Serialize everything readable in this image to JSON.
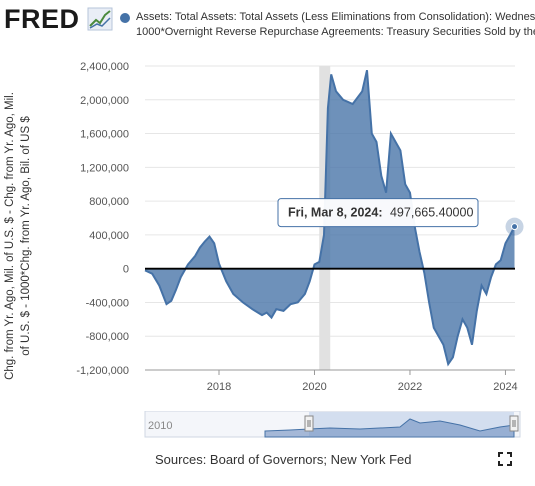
{
  "brand": {
    "logo_text": "FRED",
    "logo_icon": "trend-line-icon"
  },
  "legend": {
    "color": "#4572A7",
    "line1": "Assets: Total Assets: Total Assets (Less Eliminations from Consolidation): Wednesday",
    "line2": "1000*Overnight Reverse Repurchase Agreements: Treasury Securities Sold by the Fed"
  },
  "y_axis_label": {
    "line1": "Chg. from Yr. Ago, Mil. of U.S. $ - Chg. from Yr. Ago, Mil.",
    "line2": "of U.S. $ - 1000*Chg. from Yr. Ago, Bil. of US $"
  },
  "tooltip": {
    "date": "Fri, Mar 8, 2024:",
    "value": "497,665.40000"
  },
  "navigator": {
    "start_label": "2010"
  },
  "footer": {
    "source": "Sources: Board of Governors; New York Fed"
  },
  "chart_data": {
    "type": "area",
    "series_color": "#4572A7",
    "recession_shading": [
      2020.1,
      2020.33
    ],
    "x_ticks": [
      2018,
      2020,
      2022,
      2024
    ],
    "x_tick_labels": [
      "2018",
      "2020",
      "2022",
      "2024"
    ],
    "y_ticks": [
      -1200000,
      -800000,
      -400000,
      0,
      400000,
      800000,
      1200000,
      1600000,
      2000000,
      2400000
    ],
    "y_tick_labels": [
      "-1,200,000",
      "-800,000",
      "-400,000",
      "0",
      "400,000",
      "800,000",
      "1,200,000",
      "1,600,000",
      "2,000,000",
      "2,400,000"
    ],
    "xlim": [
      2016.45,
      2024.2
    ],
    "ylim": [
      -1200000,
      2400000
    ],
    "x": [
      2016.45,
      2016.6,
      2016.75,
      2016.9,
      2017.0,
      2017.1,
      2017.2,
      2017.35,
      2017.5,
      2017.6,
      2017.7,
      2017.8,
      2017.9,
      2018.0,
      2018.15,
      2018.3,
      2018.5,
      2018.7,
      2018.9,
      2019.0,
      2019.1,
      2019.2,
      2019.35,
      2019.5,
      2019.65,
      2019.8,
      2019.9,
      2020.0,
      2020.1,
      2020.2,
      2020.28,
      2020.35,
      2020.45,
      2020.6,
      2020.8,
      2021.0,
      2021.1,
      2021.2,
      2021.3,
      2021.4,
      2021.5,
      2021.6,
      2021.7,
      2021.8,
      2021.9,
      2022.0,
      2022.1,
      2022.2,
      2022.3,
      2022.4,
      2022.5,
      2022.6,
      2022.7,
      2022.8,
      2022.9,
      2023.0,
      2023.1,
      2023.2,
      2023.3,
      2023.4,
      2023.5,
      2023.6,
      2023.7,
      2023.8,
      2023.9,
      2024.0,
      2024.1,
      2024.19
    ],
    "y": [
      -20000,
      -60000,
      -200000,
      -420000,
      -380000,
      -250000,
      -100000,
      50000,
      150000,
      250000,
      320000,
      380000,
      300000,
      60000,
      -150000,
      -300000,
      -400000,
      -480000,
      -550000,
      -520000,
      -580000,
      -480000,
      -500000,
      -420000,
      -400000,
      -300000,
      -150000,
      50000,
      80000,
      400000,
      1900000,
      2300000,
      2100000,
      2000000,
      1950000,
      2100000,
      2350000,
      1600000,
      1500000,
      1100000,
      900000,
      1600000,
      1500000,
      1400000,
      1000000,
      900000,
      500000,
      200000,
      -50000,
      -400000,
      -700000,
      -800000,
      -900000,
      -1130000,
      -1050000,
      -800000,
      -600000,
      -700000,
      -900000,
      -500000,
      -200000,
      -300000,
      -100000,
      50000,
      100000,
      300000,
      400000,
      497665.4
    ]
  }
}
